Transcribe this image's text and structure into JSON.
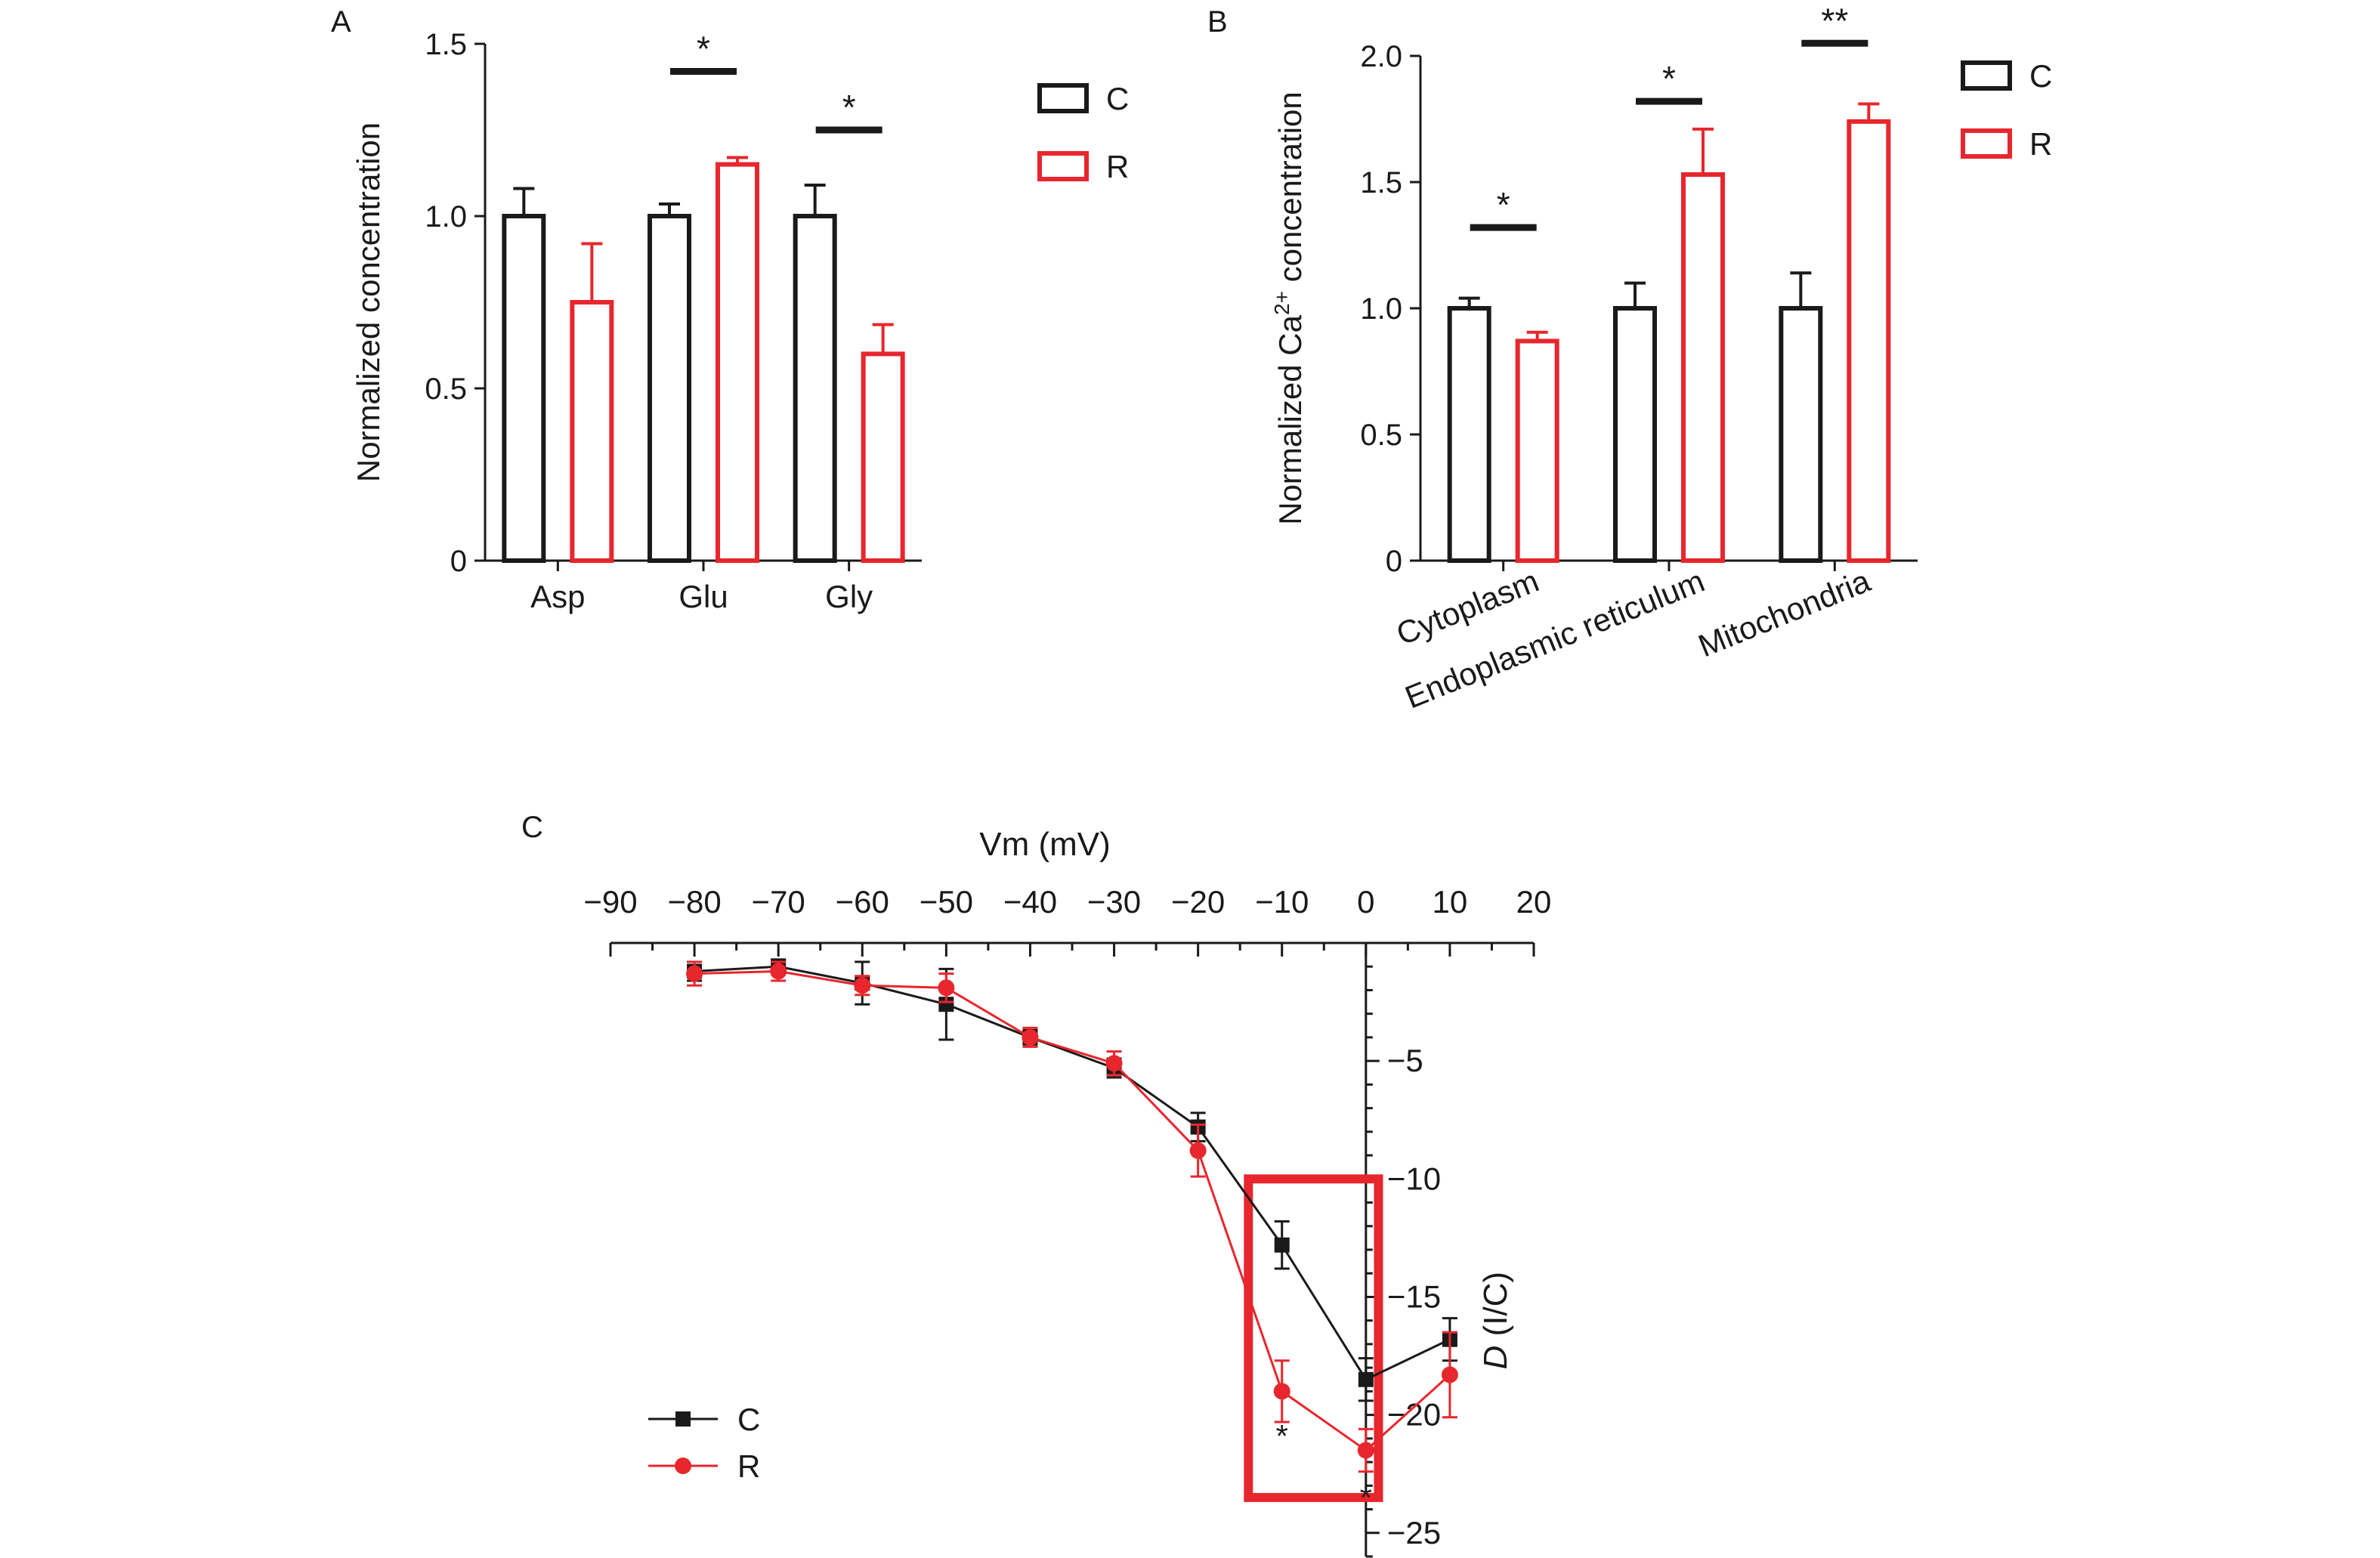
{
  "panel_labels": {
    "a": "A",
    "b": "B",
    "c": "C"
  },
  "chart_data": [
    {
      "id": "A",
      "type": "bar",
      "ylabel": "Normalized concentration",
      "ylim": [
        0,
        1.5
      ],
      "yticks": [
        {
          "value": 0,
          "label": "0"
        },
        {
          "value": 0.5,
          "label": "0.5"
        },
        {
          "value": 1.0,
          "label": "1.0"
        },
        {
          "value": 1.5,
          "label": "1.5"
        }
      ],
      "categories": [
        "Asp",
        "Glu",
        "Gly"
      ],
      "series": [
        {
          "name": "C",
          "color": "#1a1a1a",
          "values": [
            1.0,
            1.0,
            1.0
          ],
          "errors": [
            0.08,
            0.035,
            0.09
          ]
        },
        {
          "name": "R",
          "color": "#e8262d",
          "values": [
            0.75,
            1.15,
            0.6
          ],
          "errors": [
            0.17,
            0.02,
            0.085
          ]
        }
      ],
      "significance": [
        {
          "category": 1,
          "label": "*",
          "level": 1.42
        },
        {
          "category": 2,
          "label": "*",
          "level": 1.25
        }
      ],
      "legend": "top-right"
    },
    {
      "id": "B",
      "type": "bar",
      "ylabel_main": "Normalized Ca",
      "ylabel_sup": "2+",
      "ylabel_end": " concentration",
      "ylim": [
        0,
        2.0
      ],
      "yticks": [
        {
          "value": 0,
          "label": "0"
        },
        {
          "value": 0.5,
          "label": "0.5"
        },
        {
          "value": 1.0,
          "label": "1.0"
        },
        {
          "value": 1.5,
          "label": "1.5"
        },
        {
          "value": 2.0,
          "label": "2.0"
        }
      ],
      "categories": [
        "Cytoplasm",
        "Endoplasmic reticulum",
        "Mitochondria"
      ],
      "series": [
        {
          "name": "C",
          "color": "#1a1a1a",
          "values": [
            1.0,
            1.0,
            1.0
          ],
          "errors": [
            0.04,
            0.1,
            0.14
          ]
        },
        {
          "name": "R",
          "color": "#e8262d",
          "values": [
            0.87,
            1.53,
            1.74
          ],
          "errors": [
            0.035,
            0.18,
            0.07
          ]
        }
      ],
      "significance": [
        {
          "category": 0,
          "label": "*",
          "level": 1.32
        },
        {
          "category": 1,
          "label": "*",
          "level": 1.82
        },
        {
          "category": 2,
          "label": "**",
          "level": 2.05
        }
      ],
      "legend": "top-right"
    },
    {
      "id": "C",
      "type": "line",
      "xlabel": "Vm (mV)",
      "ylabel_italic": "D",
      "ylabel_rest": " (I/C)",
      "xlim": [
        -90,
        20
      ],
      "ylim": [
        -26,
        0
      ],
      "xticks": [
        {
          "value": -90,
          "label": "−90"
        },
        {
          "value": -80,
          "label": "−80"
        },
        {
          "value": -70,
          "label": "−70"
        },
        {
          "value": -60,
          "label": "−60"
        },
        {
          "value": -50,
          "label": "−50"
        },
        {
          "value": -40,
          "label": "−40"
        },
        {
          "value": -30,
          "label": "−30"
        },
        {
          "value": -20,
          "label": "−20"
        },
        {
          "value": -10,
          "label": "−10"
        },
        {
          "value": 0,
          "label": "0"
        },
        {
          "value": 10,
          "label": "10"
        },
        {
          "value": 20,
          "label": "20"
        }
      ],
      "yticks": [
        {
          "value": -5,
          "label": "−5"
        },
        {
          "value": -10,
          "label": "−10"
        },
        {
          "value": -15,
          "label": "−15"
        },
        {
          "value": -20,
          "label": "−20"
        },
        {
          "value": -25,
          "label": "−25"
        }
      ],
      "x": [
        -80,
        -70,
        -60,
        -50,
        -40,
        -30,
        -20,
        -10,
        0,
        10
      ],
      "series": [
        {
          "name": "C",
          "color": "#1a1a1a",
          "marker": "square",
          "y": [
            -1.2,
            -1.0,
            -1.7,
            -2.6,
            -4.0,
            -5.3,
            -7.8,
            -12.8,
            -18.5,
            -16.8
          ],
          "errors": [
            0.4,
            0.3,
            0.9,
            1.5,
            0.3,
            0.4,
            0.6,
            1.0,
            0.9,
            0.9
          ]
        },
        {
          "name": "R",
          "color": "#e8262d",
          "marker": "circle",
          "y": [
            -1.3,
            -1.2,
            -1.8,
            -1.9,
            -4.0,
            -5.1,
            -8.8,
            -19.0,
            -21.5,
            -18.3
          ],
          "errors": [
            0.5,
            0.4,
            0.4,
            0.6,
            0.4,
            0.5,
            1.1,
            1.3,
            0.9,
            1.8
          ]
        }
      ],
      "significance": [
        {
          "x": -10,
          "label": "*",
          "y": -20.4
        },
        {
          "x": 0,
          "label": "*",
          "y": -23.0
        }
      ],
      "highlight": {
        "x": [
          -14,
          1.5
        ],
        "y": [
          -10,
          -23.5
        ],
        "color": "#e8262d"
      },
      "legend": "bottom-left"
    }
  ]
}
